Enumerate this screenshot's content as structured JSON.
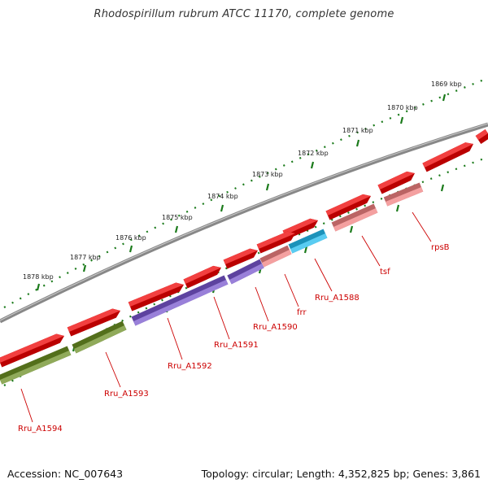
{
  "title": "Rhodospirillum rubrum ATCC 11170, complete genome",
  "accession": "Accession: NC_007643",
  "summary": "Topology: circular; Length: 4,352,825 bp; Genes: 3,861",
  "kbp_labels": [
    "1869 kbp",
    "1870 kbp",
    "1871 kbp",
    "1872 kbp",
    "1873 kbp",
    "1874 kbp",
    "1875 kbp",
    "1876 kbp",
    "1877 kbp",
    "1878 kbp"
  ],
  "gene_labels": [
    "rpsB",
    "tsf",
    "Rru_A1588",
    "frr",
    "Rru_A1590",
    "Rru_A1591",
    "Rru_A1592",
    "Rru_A1593",
    "Rru_A1594"
  ],
  "colors": {
    "backbone": "#888888",
    "forward_cds": "#ee0000",
    "gene_red": "#ee0000",
    "gene_pink": "#f08080",
    "gene_cyan": "#22bbee",
    "gene_purple": "#7755cc",
    "gene_olive": "#6b8e23",
    "tick": "#1a7a1a",
    "label": "#cc0000"
  }
}
